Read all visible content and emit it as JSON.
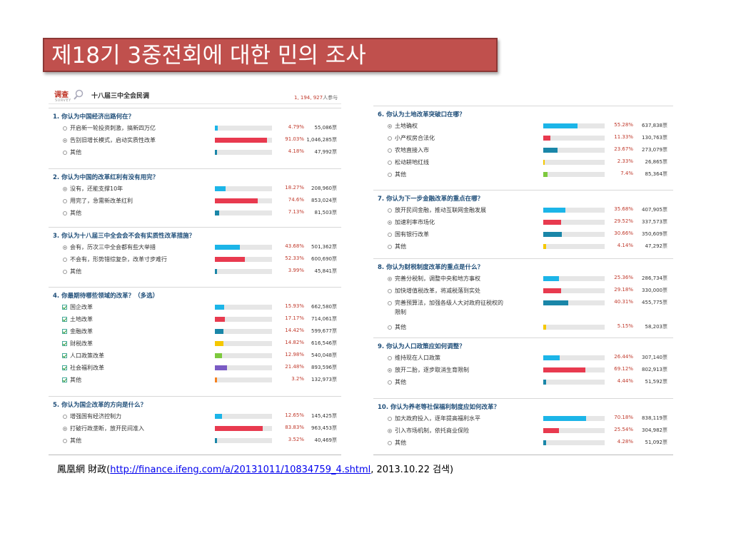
{
  "title": "제18기 3중전회에 대한 민의 조사",
  "survey": {
    "badge": "调查",
    "badge_sub": "SURVEY",
    "name": "十八届三中全会民调",
    "participants": "1, 194, 927",
    "participants_suffix": "人参与"
  },
  "source": {
    "prefix": "鳳凰網 財政(",
    "link": "http://finance.ifeng.com/a/20131011/10834759_4.shtml",
    "suffix": ", 2013.10.22 검색)"
  },
  "colors": {
    "blue": "#1cb5e8",
    "red": "#e83a4f",
    "teal": "#1a86a8",
    "yellow": "#f5c800",
    "green": "#7dc93e",
    "purple": "#7a5bc4",
    "orange": "#f58220",
    "title_bg": "#c0504d"
  },
  "chart_data": {
    "type": "bar",
    "questions": [
      {
        "title": "1. 你认为中国经济出路何在？",
        "input": "radio",
        "options": [
          {
            "label": "开启新一轮投资刺激，搞新四万亿",
            "percent": 4.79,
            "pct_text": "4.79%",
            "votes": "55,086",
            "color": "blue",
            "selected": false
          },
          {
            "label": "告别旧增长模式，启动实质性改革",
            "percent": 91.03,
            "pct_text": "91.03%",
            "votes": "1,046,285",
            "color": "red",
            "selected": true
          },
          {
            "label": "其他",
            "percent": 4.18,
            "pct_text": "4.18%",
            "votes": "47,992",
            "color": "teal",
            "selected": false
          }
        ]
      },
      {
        "title": "2. 你认为中国的改革红利有没有用完？",
        "input": "radio",
        "options": [
          {
            "label": "没有，还能支撑10年",
            "percent": 18.27,
            "pct_text": "18.27%",
            "votes": "208,960",
            "color": "blue",
            "selected": true
          },
          {
            "label": "用完了，急需新改革红利",
            "percent": 74.6,
            "pct_text": "74.6%",
            "votes": "853,024",
            "color": "red",
            "selected": false
          },
          {
            "label": "其他",
            "percent": 7.13,
            "pct_text": "7.13%",
            "votes": "81,503",
            "color": "teal",
            "selected": false
          }
        ]
      },
      {
        "title": "3. 你认为十八届三中全会会不会有实质性改革措施？",
        "input": "radio",
        "options": [
          {
            "label": "会有，历次三中全会都有些大举措",
            "percent": 43.68,
            "pct_text": "43.68%",
            "votes": "501,362",
            "color": "blue",
            "selected": true
          },
          {
            "label": "不会有，形势错综复杂，改革寸步难行",
            "percent": 52.33,
            "pct_text": "52.33%",
            "votes": "600,690",
            "color": "red",
            "selected": false
          },
          {
            "label": "其他",
            "percent": 3.99,
            "pct_text": "3.99%",
            "votes": "45,841",
            "color": "teal",
            "selected": false
          }
        ]
      },
      {
        "title": "4. 你最期待哪些领域的改革？（多选）",
        "input": "checkbox",
        "options": [
          {
            "label": "国企改革",
            "percent": 15.93,
            "pct_text": "15.93%",
            "votes": "662,580",
            "color": "blue"
          },
          {
            "label": "土地改革",
            "percent": 17.17,
            "pct_text": "17.17%",
            "votes": "714,061",
            "color": "red"
          },
          {
            "label": "金融改革",
            "percent": 14.42,
            "pct_text": "14.42%",
            "votes": "599,677",
            "color": "teal"
          },
          {
            "label": "财税改革",
            "percent": 14.82,
            "pct_text": "14.82%",
            "votes": "616,546",
            "color": "yellow"
          },
          {
            "label": "人口政策改革",
            "percent": 12.98,
            "pct_text": "12.98%",
            "votes": "540,048",
            "color": "green"
          },
          {
            "label": "社会福利改革",
            "percent": 21.48,
            "pct_text": "21.48%",
            "votes": "893,596",
            "color": "purple"
          },
          {
            "label": "其他",
            "percent": 3.2,
            "pct_text": "3.2%",
            "votes": "132,973",
            "color": "orange"
          }
        ]
      },
      {
        "title": "5. 你认为国企改革的方向是什么？",
        "input": "radio",
        "options": [
          {
            "label": "增强国有经济控制力",
            "percent": 12.65,
            "pct_text": "12.65%",
            "votes": "145,425",
            "color": "blue",
            "selected": false
          },
          {
            "label": "打破行政垄断，放开民间准入",
            "percent": 83.83,
            "pct_text": "83.83%",
            "votes": "963,453",
            "color": "red",
            "selected": true
          },
          {
            "label": "其他",
            "percent": 3.52,
            "pct_text": "3.52%",
            "votes": "40,469",
            "color": "teal",
            "selected": false
          }
        ]
      },
      {
        "title": "6. 你认为土地改革突破口在哪？",
        "input": "radio",
        "options": [
          {
            "label": "土地确权",
            "percent": 55.28,
            "pct_text": "55.28%",
            "votes": "637,838",
            "color": "blue",
            "selected": true
          },
          {
            "label": "小产权房合法化",
            "percent": 11.33,
            "pct_text": "11.33%",
            "votes": "130,763",
            "color": "red",
            "selected": false
          },
          {
            "label": "农地直接入市",
            "percent": 23.67,
            "pct_text": "23.67%",
            "votes": "273,079",
            "color": "teal",
            "selected": false
          },
          {
            "label": "松动耕地红线",
            "percent": 2.33,
            "pct_text": "2.33%",
            "votes": "26,865",
            "color": "yellow",
            "selected": false
          },
          {
            "label": "其他",
            "percent": 7.4,
            "pct_text": "7.4%",
            "votes": "85,364",
            "color": "green",
            "selected": false
          }
        ]
      },
      {
        "title": "7. 你认为下一步金融改革的重点在哪？",
        "input": "radio",
        "options": [
          {
            "label": "放开民间金融，推动互联网金融发展",
            "percent": 35.68,
            "pct_text": "35.68%",
            "votes": "407,905",
            "color": "blue",
            "selected": false
          },
          {
            "label": "加速利率市场化",
            "percent": 29.52,
            "pct_text": "29.52%",
            "votes": "337,573",
            "color": "red",
            "selected": true
          },
          {
            "label": "国有银行改革",
            "percent": 30.66,
            "pct_text": "30.66%",
            "votes": "350,609",
            "color": "teal",
            "selected": false
          },
          {
            "label": "其他",
            "percent": 4.14,
            "pct_text": "4.14%",
            "votes": "47,292",
            "color": "yellow",
            "selected": false
          }
        ]
      },
      {
        "title": "8. 你认为财税制度改革的重点是什么？",
        "input": "radio",
        "options": [
          {
            "label": "完善分税制，调整中央和地方事权",
            "percent": 25.36,
            "pct_text": "25.36%",
            "votes": "286,734",
            "color": "blue",
            "selected": true
          },
          {
            "label": "加快增值税改革，将减税落到实处",
            "percent": 29.18,
            "pct_text": "29.18%",
            "votes": "330,000",
            "color": "red",
            "selected": false
          },
          {
            "label": "完善预算法，加强各级人大对政府征税权的",
            "label2": "限制",
            "percent": 40.31,
            "pct_text": "40.31%",
            "votes": "455,775",
            "color": "teal",
            "selected": false
          },
          {
            "label": "其他",
            "percent": 5.15,
            "pct_text": "5.15%",
            "votes": "58,203",
            "color": "yellow",
            "selected": false
          }
        ]
      },
      {
        "title": "9. 你认为人口政策应如何调整？",
        "input": "radio",
        "options": [
          {
            "label": "维持现在人口政策",
            "percent": 26.44,
            "pct_text": "26.44%",
            "votes": "307,140",
            "color": "blue",
            "selected": false
          },
          {
            "label": "放开二胎，逐步取消生育限制",
            "percent": 69.12,
            "pct_text": "69.12%",
            "votes": "802,913",
            "color": "red",
            "selected": true
          },
          {
            "label": "其他",
            "percent": 4.44,
            "pct_text": "4.44%",
            "votes": "51,592",
            "color": "teal",
            "selected": false
          }
        ]
      },
      {
        "title": "10. 你认为养老等社保福利制度应如何改革？",
        "input": "radio",
        "options": [
          {
            "label": "加大政府投入，逐年提高福利水平",
            "percent": 70.18,
            "pct_text": "70.18%",
            "votes": "838,119",
            "color": "blue",
            "selected": false
          },
          {
            "label": "引入市场机制，依托商业保险",
            "percent": 25.54,
            "pct_text": "25.54%",
            "votes": "304,982",
            "color": "red",
            "selected": true
          },
          {
            "label": "其他",
            "percent": 4.28,
            "pct_text": "4.28%",
            "votes": "51,092",
            "color": "teal",
            "selected": false
          }
        ]
      }
    ],
    "vote_unit": "票"
  }
}
